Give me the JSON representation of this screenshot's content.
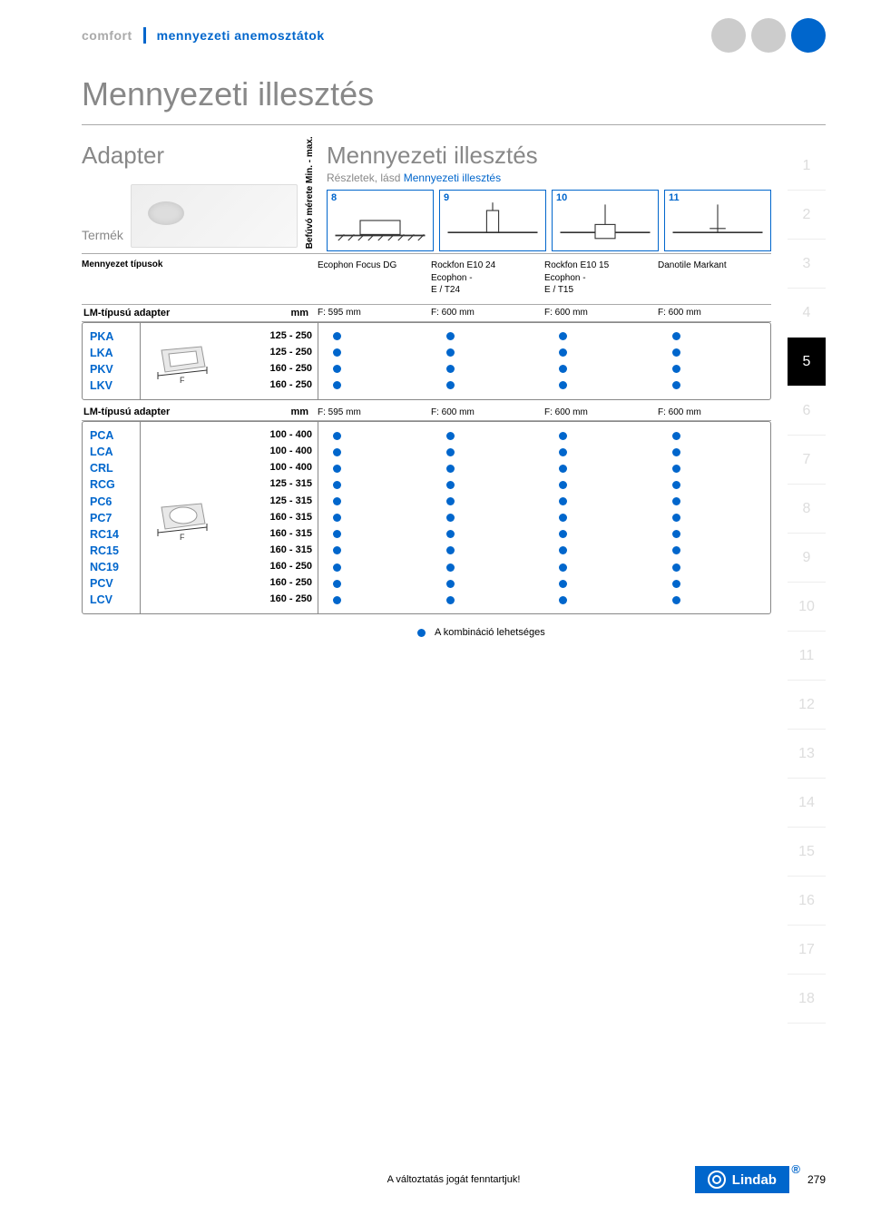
{
  "colors": {
    "blue": "#0066cc",
    "gray_text": "#888888",
    "light_gray": "#cccccc",
    "line_gray": "#aaaaaa"
  },
  "header": {
    "brand": "comfort",
    "category": "mennyezeti anemosztátok"
  },
  "page_title": "Mennyezeti illesztés",
  "left": {
    "title": "Adapter",
    "termek": "Termék",
    "vert_label": "Befúvó mérete Min. - max.",
    "type_label": "Mennyezet típusok",
    "adapter_header": "LM-típusú adapter",
    "mm": "mm"
  },
  "right": {
    "title": "Mennyezeti illesztés",
    "subtitle_prefix": "Részletek, lásd",
    "subtitle_link": "Mennyezeti illesztés",
    "diagrams": [
      "8",
      "9",
      "10",
      "11"
    ],
    "types": [
      "Ecophon Focus DG",
      "Rockfon E10 24 Ecophon - E / T24",
      "Rockfon E10 15 Ecophon - E / T15",
      "Danotile Markant"
    ],
    "f_values": [
      "F: 595 mm",
      "F: 600 mm",
      "F: 600 mm",
      "F: 600 mm"
    ]
  },
  "block1": {
    "products": [
      "PKA",
      "LKA",
      "PKV",
      "LKV"
    ],
    "sizes": [
      "125 - 250",
      "125 - 250",
      "160 - 250",
      "160 - 250"
    ],
    "shape": "square"
  },
  "block2": {
    "products": [
      "PCA",
      "LCA",
      "CRL",
      "RCG",
      "PC6",
      "PC7",
      "RC14",
      "RC15",
      "NC19",
      "PCV",
      "LCV"
    ],
    "sizes": [
      "100 - 400",
      "100 - 400",
      "100 - 400",
      "125 - 315",
      "125 - 315",
      "160 - 315",
      "160 - 315",
      "160 - 315",
      "160 - 250",
      "160 - 250",
      "160 - 250"
    ],
    "shape": "circle"
  },
  "legend": "A kombináció lehetséges",
  "sidebar": {
    "items": [
      "1",
      "2",
      "3",
      "4",
      "5",
      "6",
      "7",
      "8",
      "9",
      "10",
      "11",
      "12",
      "13",
      "14",
      "15",
      "16",
      "17",
      "18"
    ],
    "active": "5"
  },
  "footer": {
    "disclaimer": "A változtatás jogát fenntartjuk!",
    "logo": "Lindab",
    "page": "279"
  }
}
